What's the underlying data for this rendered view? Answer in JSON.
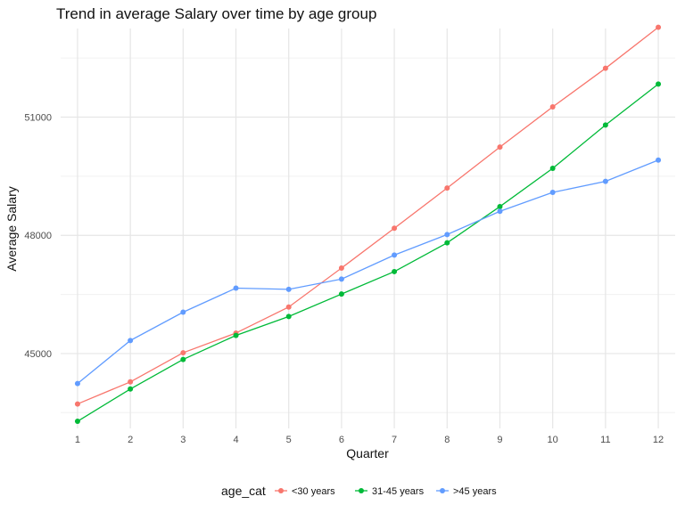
{
  "chart_data": {
    "type": "line",
    "title": "Trend in average Salary over time by age group",
    "xlabel": "Quarter",
    "ylabel": "Average Salary",
    "x": [
      1,
      2,
      3,
      4,
      5,
      6,
      7,
      8,
      9,
      10,
      11,
      12
    ],
    "xlim": [
      0.68,
      12.32
    ],
    "ylim": [
      43100,
      53250
    ],
    "yticks": [
      45000,
      48000,
      51000
    ],
    "xticks": [
      1,
      2,
      3,
      4,
      5,
      6,
      7,
      8,
      9,
      10,
      11,
      12
    ],
    "grid": true,
    "legend_title": "age_cat",
    "legend_position": "bottom",
    "series": [
      {
        "name": "<30 years",
        "color": "#F8766D",
        "values": [
          43720,
          44280,
          45020,
          45520,
          46180,
          47170,
          48180,
          49200,
          50240,
          51260,
          52240,
          53280
        ]
      },
      {
        "name": "31-45 years",
        "color": "#00BA38",
        "values": [
          43280,
          44100,
          44850,
          45460,
          45940,
          46510,
          47080,
          47810,
          48730,
          49700,
          50800,
          51840
        ]
      },
      {
        "name": ">45 years",
        "color": "#619CFF",
        "values": [
          44240,
          45330,
          46050,
          46660,
          46630,
          46890,
          47500,
          48020,
          48610,
          49090,
          49370,
          49910
        ]
      }
    ]
  }
}
